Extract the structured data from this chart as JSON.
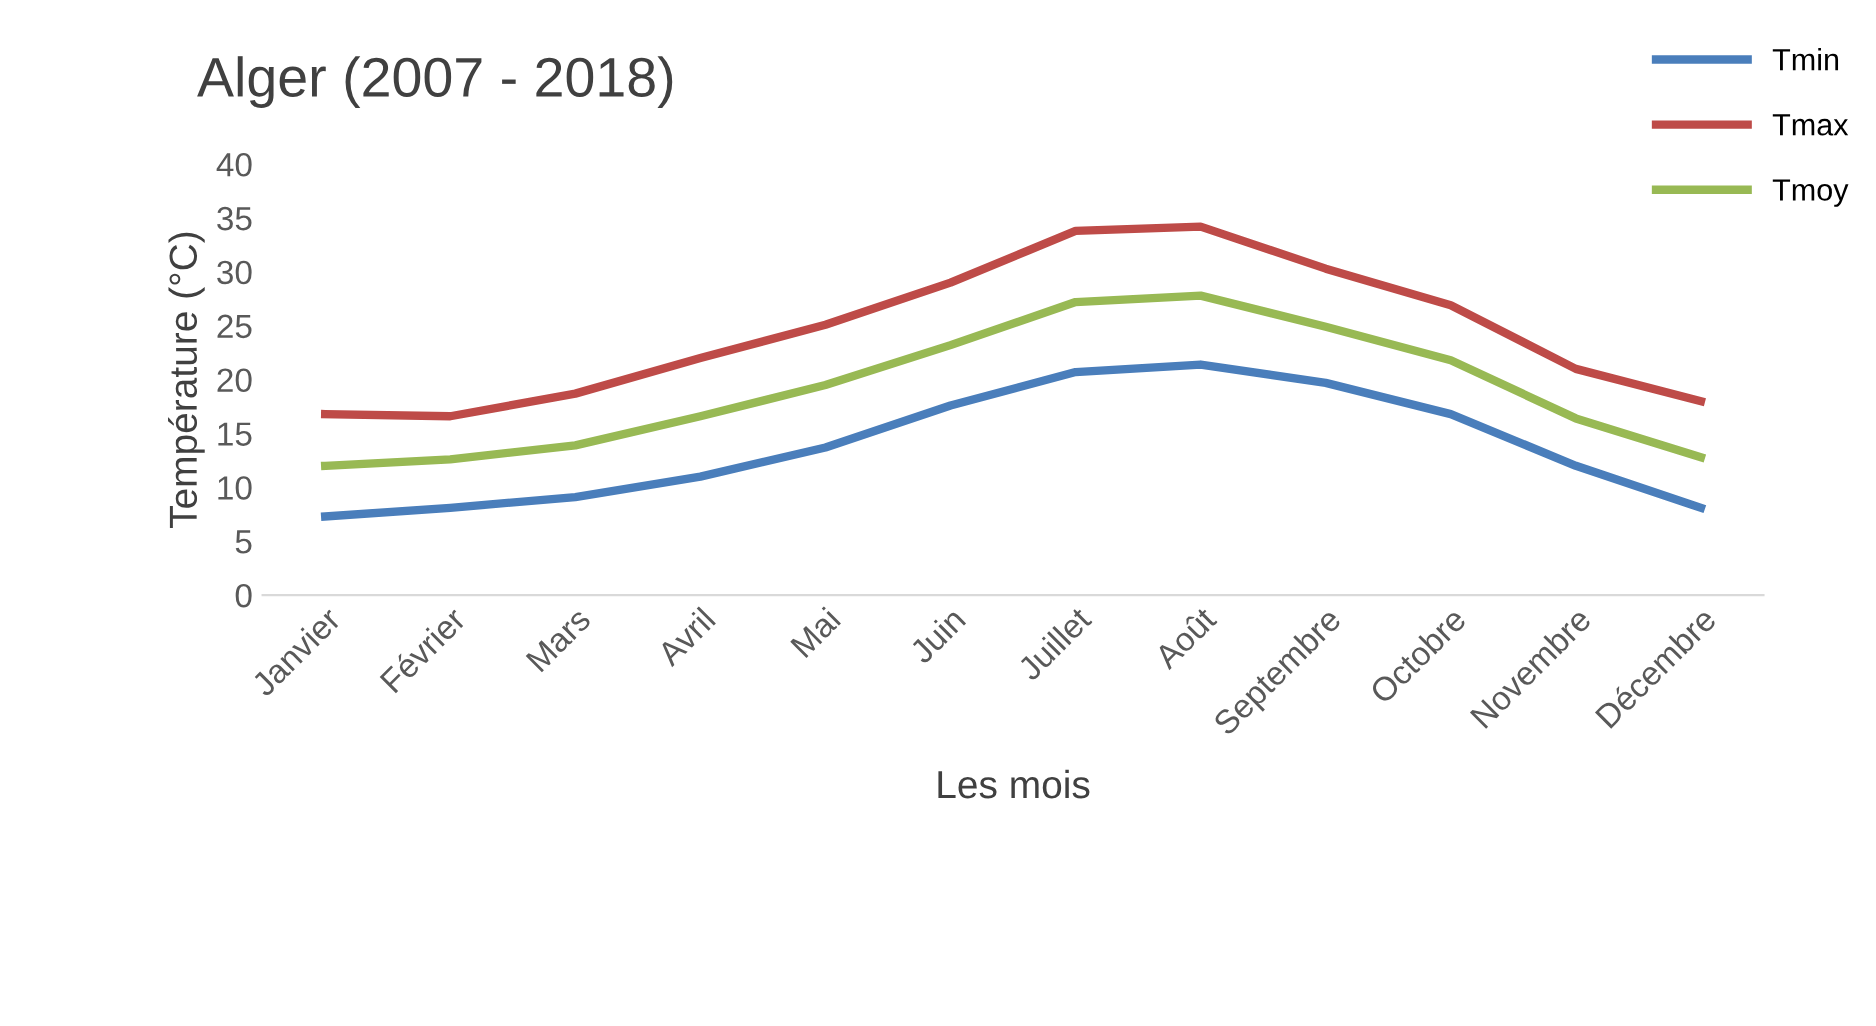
{
  "chart_data": {
    "type": "line",
    "title": "Alger (2007 - 2018)",
    "xlabel": "Les mois",
    "ylabel": "Température (°C)",
    "categories": [
      "Janvier",
      "Février",
      "Mars",
      "Avril",
      "Mai",
      "Juin",
      "Juillet",
      "Août",
      "Septembre",
      "Octobre",
      "Novembre",
      "Décembre"
    ],
    "series": [
      {
        "name": "Tmin",
        "color": "#4a7ebb",
        "values": [
          7.3,
          8.1,
          9.1,
          11,
          13.7,
          17.6,
          20.7,
          21.4,
          19.7,
          16.8,
          12,
          8.1
        ]
      },
      {
        "name": "Tmax",
        "color": "#be4b48",
        "values": [
          16.8,
          16.6,
          18.7,
          22,
          25.1,
          29,
          33.8,
          34.2,
          30.3,
          26.9,
          21,
          18
        ]
      },
      {
        "name": "Tmoy",
        "color": "#98b954",
        "values": [
          12,
          12.6,
          13.9,
          16.6,
          19.5,
          23.2,
          27.2,
          27.8,
          24.9,
          21.8,
          16.4,
          12.8
        ]
      }
    ],
    "ylim": [
      0,
      40
    ],
    "yticks": [
      0,
      5,
      10,
      15,
      20,
      25,
      30,
      35,
      40
    ],
    "grid": false,
    "legend": "top right",
    "marker": "none",
    "line_style": "solid"
  }
}
